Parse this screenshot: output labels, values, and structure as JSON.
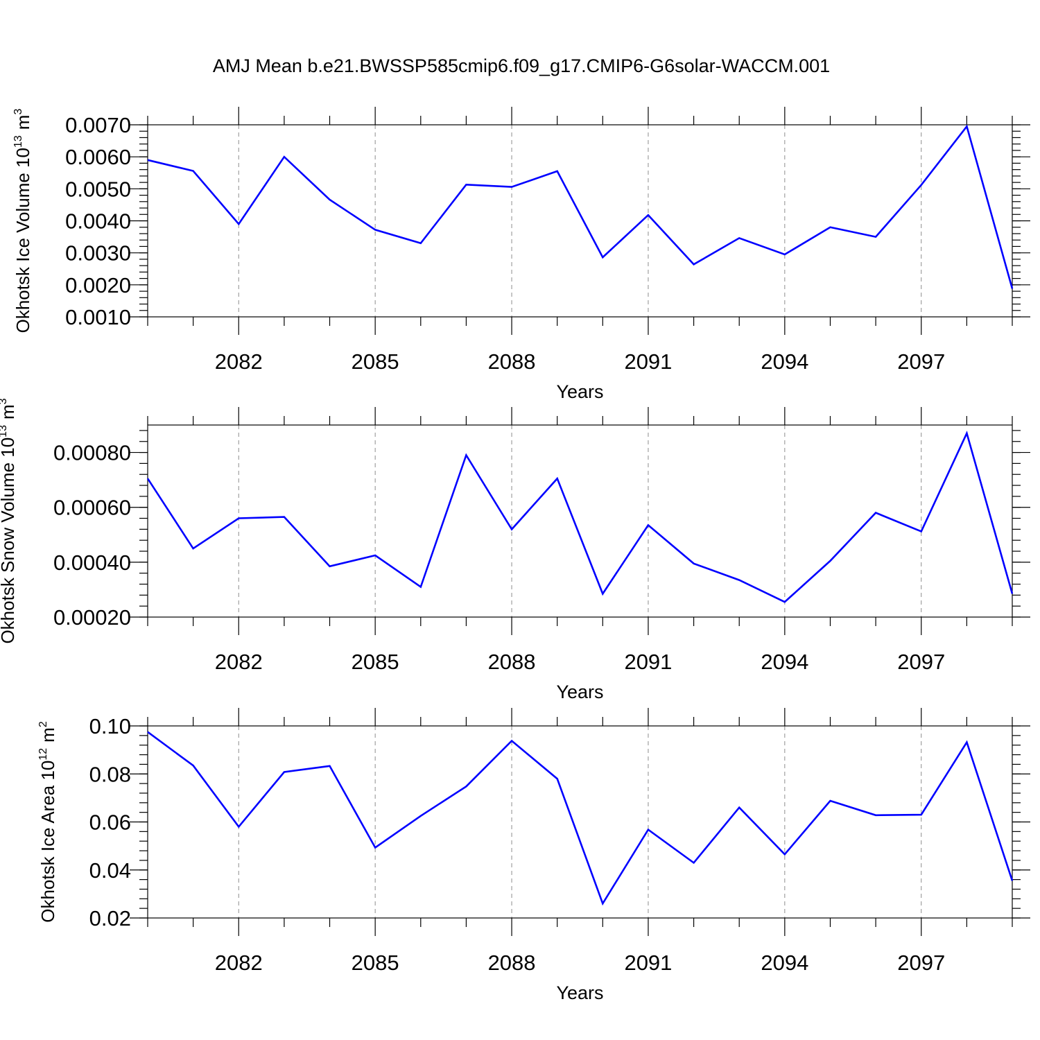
{
  "title": "AMJ Mean b.e21.BWSSP585cmip6.f09_g17.CMIP6-G6solar-WACCM.001",
  "colors": {
    "series_line": "#0000ff",
    "axis": "#000000",
    "grid": "#8c8c8c"
  },
  "chart_data": [
    {
      "type": "line",
      "xlabel": "Years",
      "ylabel": "Okhotsk Ice Volume 10",
      "ylabel_exponent": "13",
      "ylabel_unit": "m",
      "ylabel_unit_exponent": "3",
      "xlim": [
        2080,
        2099
      ],
      "ylim": [
        0.001,
        0.007
      ],
      "x_ticks": [
        2082,
        2085,
        2088,
        2091,
        2094,
        2097
      ],
      "x_tick_labels": [
        "2082",
        "2085",
        "2088",
        "2091",
        "2094",
        "2097"
      ],
      "y_ticks": [
        0.001,
        0.002,
        0.003,
        0.004,
        0.005,
        0.006,
        0.007
      ],
      "y_tick_labels": [
        "0.0010",
        "0.0020",
        "0.0030",
        "0.0040",
        "0.0050",
        "0.0060",
        "0.0070"
      ],
      "grid": "vertical-dashed-at-major-x-ticks",
      "x": [
        2080,
        2081,
        2082,
        2083,
        2084,
        2085,
        2086,
        2087,
        2088,
        2089,
        2090,
        2091,
        2092,
        2093,
        2094,
        2095,
        2096,
        2097,
        2098,
        2099
      ],
      "values": [
        0.0059,
        0.00556,
        0.0039,
        0.006,
        0.00466,
        0.00372,
        0.0033,
        0.00513,
        0.00506,
        0.00555,
        0.00286,
        0.00418,
        0.00264,
        0.00346,
        0.00295,
        0.0038,
        0.0035,
        0.00512,
        0.00695,
        0.00188
      ]
    },
    {
      "type": "line",
      "xlabel": "Years",
      "ylabel": "Okhotsk Snow Volume 10",
      "ylabel_exponent": "13",
      "ylabel_unit": "m",
      "ylabel_unit_exponent": "3",
      "xlim": [
        2080,
        2099
      ],
      "ylim": [
        0.0002,
        0.0009
      ],
      "x_ticks": [
        2082,
        2085,
        2088,
        2091,
        2094,
        2097
      ],
      "x_tick_labels": [
        "2082",
        "2085",
        "2088",
        "2091",
        "2094",
        "2097"
      ],
      "y_ticks": [
        0.0002,
        0.0004,
        0.0006,
        0.0008
      ],
      "y_tick_labels": [
        "0.00020",
        "0.00040",
        "0.00060",
        "0.00080"
      ],
      "grid": "vertical-dashed-at-major-x-ticks",
      "x": [
        2080,
        2081,
        2082,
        2083,
        2084,
        2085,
        2086,
        2087,
        2088,
        2089,
        2090,
        2091,
        2092,
        2093,
        2094,
        2095,
        2096,
        2097,
        2098,
        2099
      ],
      "values": [
        0.000705,
        0.00045,
        0.00056,
        0.000565,
        0.000385,
        0.000425,
        0.00031,
        0.00079,
        0.00052,
        0.000705,
        0.000285,
        0.000535,
        0.000395,
        0.000335,
        0.000255,
        0.000405,
        0.00058,
        0.000512,
        0.00087,
        0.000285
      ]
    },
    {
      "type": "line",
      "xlabel": "Years",
      "ylabel": "Okhotsk Ice Area 10",
      "ylabel_exponent": "12",
      "ylabel_unit": "m",
      "ylabel_unit_exponent": "2",
      "xlim": [
        2080,
        2099
      ],
      "ylim": [
        0.02,
        0.1
      ],
      "x_ticks": [
        2082,
        2085,
        2088,
        2091,
        2094,
        2097
      ],
      "x_tick_labels": [
        "2082",
        "2085",
        "2088",
        "2091",
        "2094",
        "2097"
      ],
      "y_ticks": [
        0.02,
        0.04,
        0.06,
        0.08,
        0.1
      ],
      "y_tick_labels": [
        "0.02",
        "0.04",
        "0.06",
        "0.08",
        "0.10"
      ],
      "grid": "vertical-dashed-at-major-x-ticks",
      "x": [
        2080,
        2081,
        2082,
        2083,
        2084,
        2085,
        2086,
        2087,
        2088,
        2089,
        2090,
        2091,
        2092,
        2093,
        2094,
        2095,
        2096,
        2097,
        2098,
        2099
      ],
      "values": [
        0.0975,
        0.0835,
        0.058,
        0.0808,
        0.0833,
        0.0493,
        0.0625,
        0.0748,
        0.0938,
        0.078,
        0.026,
        0.0568,
        0.043,
        0.066,
        0.0465,
        0.0688,
        0.0628,
        0.063,
        0.0932,
        0.0355
      ]
    }
  ]
}
